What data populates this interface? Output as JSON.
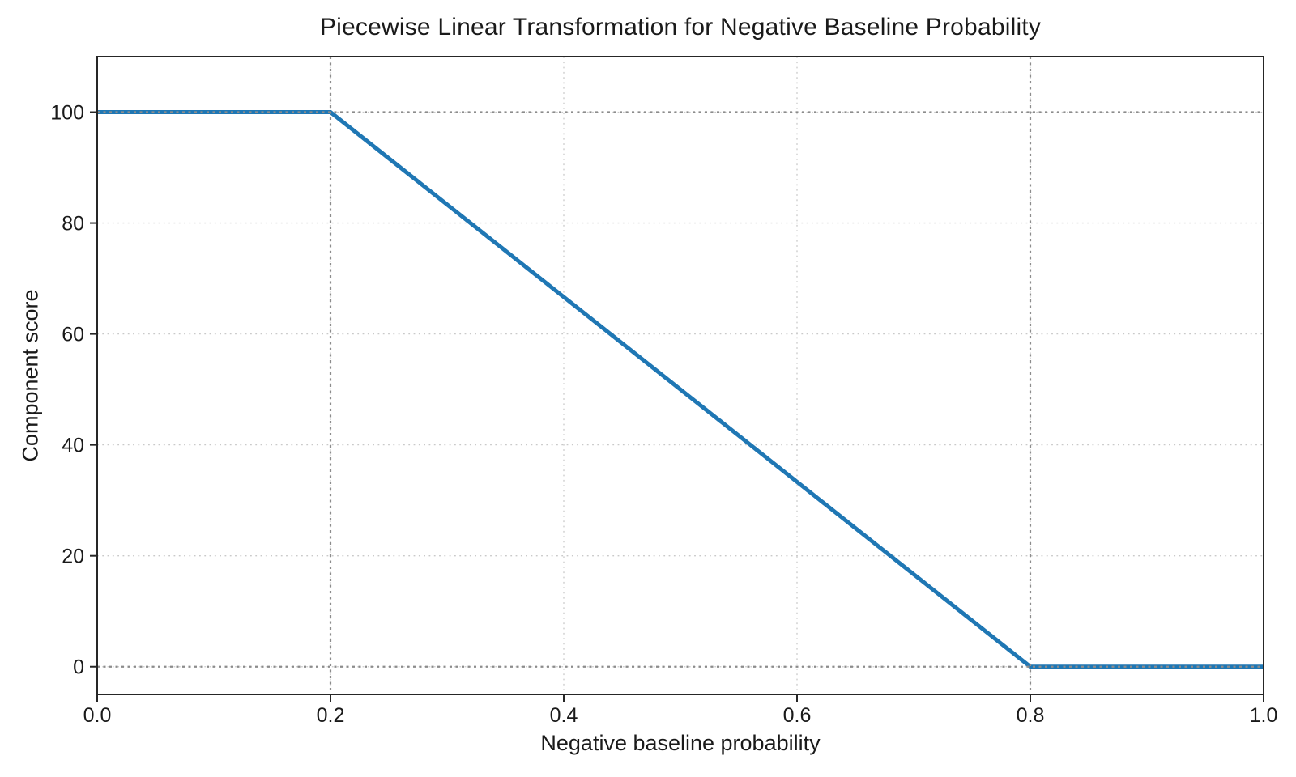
{
  "chart_data": {
    "type": "line",
    "title": "Piecewise Linear Transformation for Negative Baseline Probability",
    "xlabel": "Negative baseline probability",
    "ylabel": "Component score",
    "xlim": [
      0.0,
      1.0
    ],
    "ylim": [
      -5,
      110
    ],
    "xticks": {
      "values": [
        0.0,
        0.2,
        0.4,
        0.6,
        0.8,
        1.0
      ],
      "labels": [
        "0.0",
        "0.2",
        "0.4",
        "0.6",
        "0.8",
        "1.0"
      ]
    },
    "yticks": {
      "values": [
        0,
        20,
        40,
        60,
        80,
        100
      ],
      "labels": [
        "0",
        "20",
        "40",
        "60",
        "80",
        "100"
      ]
    },
    "series": [
      {
        "name": "component-score-curve",
        "x": [
          0.0,
          0.2,
          0.8,
          1.0
        ],
        "y": [
          100,
          100,
          0,
          0
        ],
        "color": "#1f77b4",
        "line_width": 5
      }
    ],
    "grid": {
      "show": true,
      "line_style": "dotted",
      "color": "#c9c9c9"
    },
    "reference_lines": {
      "vertical_x": [
        0.2,
        0.8
      ],
      "horizontal_y": [
        0,
        100
      ],
      "line_style": "dotted",
      "color": "#8c8c8c"
    },
    "colors": {
      "background": "#ffffff",
      "axis": "#262626",
      "text": "#1a1a1a"
    },
    "legend": {
      "show": false
    }
  }
}
